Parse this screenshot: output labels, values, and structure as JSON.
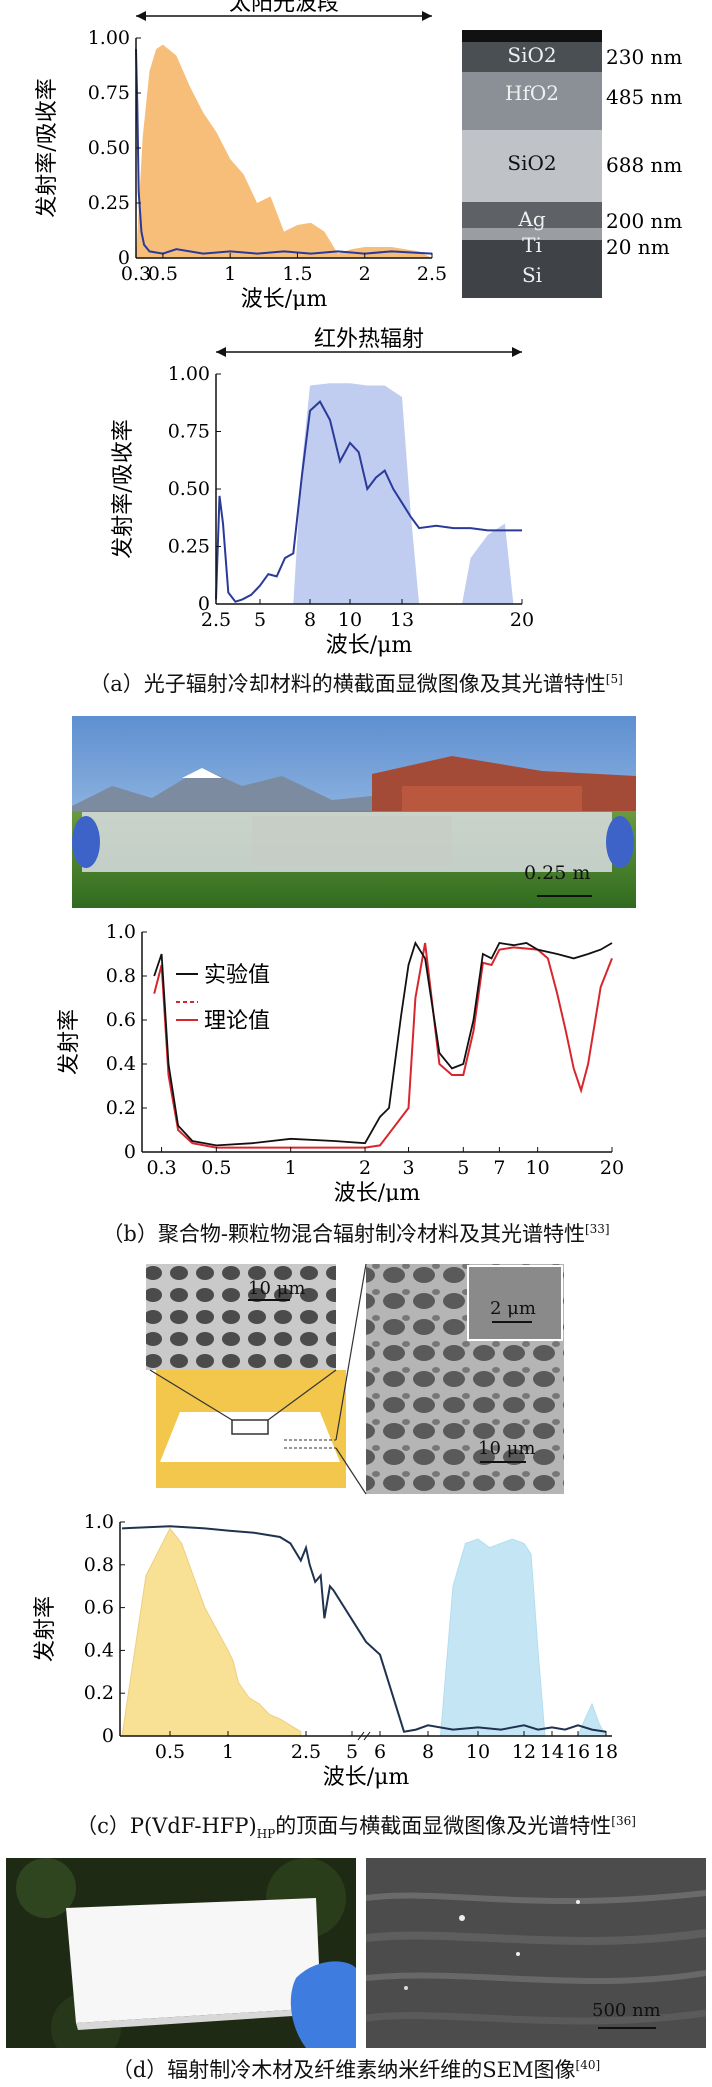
{
  "captions": {
    "a": "（a）光子辐射冷却材料的横截面显微图像及其光谱特性",
    "a_ref": "[5]",
    "b": "（b）聚合物-颗粒物混合辐射制冷材料及其光谱特性",
    "b_ref": "[33]",
    "c": "（c）P(VdF-HFP)",
    "c_sub": "HP",
    "c_tail": "的顶面与横截面显微图像及光谱特性",
    "c_ref": "[36]",
    "d": "（d）辐射制冷木材及纤维素纳米纤维的SEM图像",
    "d_ref": "[40]"
  },
  "layers": {
    "rows": [
      {
        "material": "SiO2",
        "thickness": "230 nm"
      },
      {
        "material": "HfO2",
        "thickness": "485 nm"
      },
      {
        "material": "SiO2",
        "thickness": "688 nm"
      },
      {
        "material": "Ag",
        "thickness": "200 nm"
      },
      {
        "material": "Ti",
        "thickness": "20 nm"
      },
      {
        "material": "Si",
        "thickness": ""
      }
    ]
  },
  "scalebars": {
    "b_photo": "0.25 m",
    "c_top": "10 μm",
    "c_inset": "2 μm",
    "c_cross": "10 μm",
    "d_sem": "500 nm"
  },
  "chart_data": [
    {
      "type": "line",
      "id": "a1",
      "band_label": "太阳光波段",
      "ylabel": "发射率/吸收率",
      "xlabel": "波长/μm",
      "xlim": [
        0.3,
        2.5
      ],
      "ylim": [
        0,
        1
      ],
      "xticks": [
        "0.3",
        "0.5",
        "1",
        "1.5",
        "2",
        "2.5"
      ],
      "xtick_values": [
        0.3,
        0.5,
        1,
        1.5,
        2,
        2.5
      ],
      "yticks": [
        "0",
        "0.25",
        "0.50",
        "0.75",
        "1.00"
      ],
      "ytick_values": [
        0,
        0.25,
        0.5,
        0.75,
        1.0
      ],
      "colors": {
        "fill": "#f5b76a",
        "line": "#2b3a9a"
      },
      "filled_spectrum": {
        "x": [
          0.3,
          0.35,
          0.4,
          0.45,
          0.5,
          0.6,
          0.7,
          0.8,
          0.9,
          1.0,
          1.1,
          1.2,
          1.3,
          1.4,
          1.5,
          1.6,
          1.7,
          1.8,
          1.9,
          2.0,
          2.2,
          2.4,
          2.5
        ],
        "y": [
          0.0,
          0.55,
          0.85,
          0.95,
          0.97,
          0.92,
          0.78,
          0.66,
          0.57,
          0.45,
          0.38,
          0.25,
          0.28,
          0.12,
          0.15,
          0.16,
          0.12,
          0.02,
          0.04,
          0.05,
          0.05,
          0.03,
          0.0
        ]
      },
      "line_series": {
        "x": [
          0.3,
          0.31,
          0.32,
          0.34,
          0.36,
          0.4,
          0.5,
          0.6,
          0.8,
          1.0,
          1.2,
          1.4,
          1.6,
          1.8,
          2.0,
          2.2,
          2.5
        ],
        "y": [
          0.95,
          0.7,
          0.3,
          0.12,
          0.06,
          0.03,
          0.02,
          0.04,
          0.02,
          0.03,
          0.02,
          0.03,
          0.02,
          0.03,
          0.02,
          0.03,
          0.02
        ]
      }
    },
    {
      "type": "line",
      "id": "a2",
      "band_label": "红外热辐射",
      "ylabel": "发射率/吸收率",
      "xlabel": "波长/μm",
      "xlim": [
        2.5,
        20
      ],
      "ylim": [
        0,
        1
      ],
      "xticks": [
        "2.5",
        "5",
        "8",
        "10",
        "13",
        "20"
      ],
      "xtick_values": [
        2.5,
        5,
        8,
        10,
        13,
        20
      ],
      "yticks": [
        "0",
        "0.25",
        "0.50",
        "0.75",
        "1.00"
      ],
      "ytick_values": [
        0,
        0.25,
        0.5,
        0.75,
        1.0
      ],
      "colors": {
        "fill": "#b9c8ee",
        "line": "#2b3a9a"
      },
      "filled_spectrum": {
        "x": [
          7.0,
          7.5,
          8.0,
          9.0,
          10.0,
          11.0,
          12.0,
          13.0,
          13.5,
          14.0,
          16.5,
          17.0,
          18.0,
          19.0,
          19.5
        ],
        "y": [
          0.0,
          0.6,
          0.95,
          0.96,
          0.96,
          0.95,
          0.95,
          0.9,
          0.4,
          0.0,
          0.0,
          0.2,
          0.3,
          0.35,
          0.0
        ]
      },
      "line_series": {
        "x": [
          2.5,
          2.7,
          2.9,
          3.2,
          3.6,
          4.0,
          4.5,
          5.0,
          5.5,
          6.0,
          6.5,
          7.0,
          7.5,
          8.0,
          8.5,
          9.0,
          9.5,
          10.0,
          10.5,
          11.0,
          11.5,
          12.0,
          12.5,
          13.0,
          13.5,
          14.0,
          15.0,
          16.0,
          17.0,
          18.0,
          19.0,
          20.0
        ],
        "y": [
          0.02,
          0.47,
          0.35,
          0.05,
          0.01,
          0.02,
          0.04,
          0.08,
          0.13,
          0.12,
          0.2,
          0.22,
          0.55,
          0.84,
          0.88,
          0.8,
          0.62,
          0.7,
          0.66,
          0.5,
          0.55,
          0.58,
          0.5,
          0.44,
          0.38,
          0.33,
          0.34,
          0.33,
          0.33,
          0.32,
          0.32,
          0.32
        ]
      }
    },
    {
      "type": "line",
      "id": "b",
      "ylabel": "发射率",
      "xlabel": "波长/μm",
      "xlim": [
        0.25,
        20
      ],
      "ylim": [
        0,
        1
      ],
      "xticks": [
        "0.3",
        "0.5",
        "1",
        "2",
        "3",
        "5",
        "7",
        "10",
        "20"
      ],
      "xtick_values": [
        0.3,
        0.5,
        1,
        2,
        3,
        5,
        7,
        10,
        20
      ],
      "yticks": [
        "0",
        "0.2",
        "0.4",
        "0.6",
        "0.8",
        "1.0"
      ],
      "ytick_values": [
        0,
        0.2,
        0.4,
        0.6,
        0.8,
        1.0
      ],
      "legend": [
        "实验值",
        "理论值"
      ],
      "colors": {
        "exp": "#111111",
        "theory": "#d8262e"
      },
      "series": [
        {
          "name": "实验值",
          "x": [
            0.28,
            0.3,
            0.32,
            0.35,
            0.4,
            0.5,
            0.7,
            1.0,
            1.5,
            2.0,
            2.3,
            2.5,
            2.8,
            3.0,
            3.2,
            3.5,
            4.0,
            4.5,
            5.0,
            5.5,
            6.0,
            6.5,
            7.0,
            8.0,
            9.0,
            10.0,
            12.0,
            14.0,
            16.0,
            18.0,
            20.0
          ],
          "y": [
            0.8,
            0.9,
            0.4,
            0.12,
            0.05,
            0.03,
            0.04,
            0.06,
            0.05,
            0.04,
            0.16,
            0.2,
            0.62,
            0.85,
            0.95,
            0.88,
            0.45,
            0.38,
            0.4,
            0.6,
            0.9,
            0.88,
            0.95,
            0.94,
            0.95,
            0.92,
            0.9,
            0.88,
            0.9,
            0.92,
            0.95
          ]
        },
        {
          "name": "理论值",
          "x": [
            0.28,
            0.3,
            0.32,
            0.35,
            0.4,
            0.5,
            0.7,
            1.0,
            1.5,
            2.0,
            2.3,
            3.0,
            3.2,
            3.5,
            4.0,
            4.5,
            5.0,
            5.5,
            6.0,
            6.5,
            7.0,
            8.0,
            10.0,
            11.0,
            12.0,
            13.0,
            14.0,
            15.0,
            16.0,
            18.0,
            20.0
          ],
          "y": [
            0.72,
            0.85,
            0.35,
            0.1,
            0.04,
            0.02,
            0.02,
            0.02,
            0.02,
            0.02,
            0.03,
            0.2,
            0.7,
            0.95,
            0.4,
            0.35,
            0.35,
            0.55,
            0.86,
            0.85,
            0.92,
            0.93,
            0.92,
            0.88,
            0.72,
            0.55,
            0.38,
            0.28,
            0.4,
            0.75,
            0.88
          ]
        }
      ]
    },
    {
      "type": "line",
      "id": "c",
      "ylabel": "发射率",
      "xlabel": "波长/μm",
      "ylim": [
        0,
        1
      ],
      "xticks": [
        "0.5",
        "1",
        "2.5",
        "5",
        "6",
        "8",
        "10",
        "12",
        "14",
        "16",
        "18"
      ],
      "xtick_values": [
        0.5,
        1,
        2.5,
        5,
        6,
        8,
        10,
        12,
        14,
        16,
        18
      ],
      "yticks": [
        "0",
        "0.2",
        "0.4",
        "0.6",
        "0.8",
        "1.0"
      ],
      "ytick_values": [
        0,
        0.2,
        0.4,
        0.6,
        0.8,
        1.0
      ],
      "colors": {
        "solar": "#f3c93d",
        "ir": "#7ec8e8",
        "line": "#1f3250"
      },
      "solar_fill": {
        "x": [
          0.3,
          0.4,
          0.5,
          0.6,
          0.7,
          0.8,
          0.9,
          1.0,
          1.1,
          1.2,
          1.4,
          1.6,
          1.8,
          2.0,
          2.2,
          2.4
        ],
        "y": [
          0.0,
          0.75,
          0.97,
          0.9,
          0.75,
          0.6,
          0.5,
          0.4,
          0.35,
          0.25,
          0.18,
          0.15,
          0.1,
          0.08,
          0.05,
          0.02
        ]
      },
      "ir_fill": {
        "x": [
          8.5,
          9.0,
          9.5,
          10.0,
          10.5,
          11.0,
          11.5,
          12.0,
          12.5,
          13.0,
          13.5,
          16.0,
          16.5,
          17.0,
          17.5,
          18.0
        ],
        "y": [
          0.0,
          0.7,
          0.9,
          0.92,
          0.88,
          0.9,
          0.92,
          0.9,
          0.85,
          0.4,
          0.0,
          0.0,
          0.08,
          0.15,
          0.06,
          0.0
        ]
      },
      "line_series": {
        "x": [
          0.3,
          0.5,
          0.8,
          1.0,
          1.5,
          2.0,
          2.2,
          2.4,
          2.5,
          2.7,
          3.0,
          3.3,
          3.5,
          3.8,
          4.0,
          5.5,
          6.0,
          6.5,
          7.0,
          7.5,
          8.0,
          9.0,
          10.0,
          11.0,
          12.0,
          13.0,
          14.0,
          15.0,
          16.0,
          17.0,
          18.0
        ],
        "y": [
          0.97,
          0.98,
          0.97,
          0.96,
          0.95,
          0.93,
          0.9,
          0.82,
          0.88,
          0.8,
          0.72,
          0.75,
          0.55,
          0.7,
          0.68,
          0.44,
          0.38,
          0.2,
          0.02,
          0.03,
          0.05,
          0.03,
          0.04,
          0.03,
          0.05,
          0.03,
          0.04,
          0.03,
          0.05,
          0.03,
          0.02
        ]
      }
    }
  ]
}
